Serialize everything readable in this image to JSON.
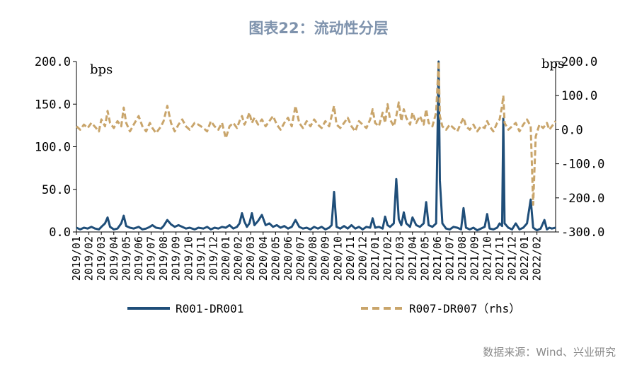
{
  "title": "图表22：流动性分层",
  "source": "数据来源：Wind、兴业研究",
  "chart_data": {
    "type": "line",
    "left_axis": {
      "unit": "bps",
      "ylim": [
        0,
        200
      ],
      "ticks": [
        "0.0",
        "50.0",
        "100.0",
        "150.0",
        "200.0"
      ]
    },
    "right_axis": {
      "unit": "bps",
      "ylim": [
        -300,
        200
      ],
      "ticks": [
        "-300.0",
        "-200.0",
        "-100.0",
        "0.0",
        "100.0",
        "200.0"
      ]
    },
    "x_tick_labels": [
      "2019/01",
      "2019/02",
      "2019/03",
      "2019/04",
      "2019/05",
      "2019/06",
      "2019/07",
      "2019/08",
      "2019/09",
      "2019/10",
      "2019/11",
      "2019/12",
      "2020/01",
      "2020/02",
      "2020/03",
      "2020/04",
      "2020/05",
      "2020/06",
      "2020/07",
      "2020/08",
      "2020/09",
      "2020/10",
      "2020/11",
      "2020/12",
      "2021/01",
      "2021/02",
      "2021/03",
      "2021/04",
      "2021/05",
      "2021/06",
      "2021/07",
      "2021/08",
      "2021/09",
      "2021/10",
      "2021/11",
      "2021/12",
      "2022/01",
      "2022/02"
    ],
    "x_range": [
      0,
      38.5
    ],
    "series": [
      {
        "name": "R001-DR001",
        "axis": "left",
        "color": "#1f4e79",
        "style": "solid",
        "points": [
          [
            0,
            5
          ],
          [
            0.3,
            3
          ],
          [
            0.6,
            5
          ],
          [
            0.9,
            4
          ],
          [
            1.2,
            6
          ],
          [
            1.5,
            4
          ],
          [
            1.8,
            3
          ],
          [
            2.0,
            6
          ],
          [
            2.3,
            10
          ],
          [
            2.5,
            17
          ],
          [
            2.7,
            6
          ],
          [
            3.0,
            3
          ],
          [
            3.3,
            4
          ],
          [
            3.6,
            10
          ],
          [
            3.8,
            19
          ],
          [
            4.0,
            7
          ],
          [
            4.3,
            5
          ],
          [
            4.6,
            4
          ],
          [
            5.0,
            6
          ],
          [
            5.3,
            3
          ],
          [
            5.6,
            4
          ],
          [
            5.9,
            6
          ],
          [
            6.1,
            8
          ],
          [
            6.4,
            5
          ],
          [
            6.8,
            4
          ],
          [
            7.0,
            7
          ],
          [
            7.3,
            14
          ],
          [
            7.6,
            9
          ],
          [
            7.9,
            6
          ],
          [
            8.2,
            8
          ],
          [
            8.5,
            6
          ],
          [
            8.8,
            4
          ],
          [
            9.1,
            5
          ],
          [
            9.5,
            3
          ],
          [
            9.8,
            5
          ],
          [
            10.2,
            4
          ],
          [
            10.5,
            6
          ],
          [
            10.8,
            3
          ],
          [
            11.1,
            5
          ],
          [
            11.4,
            4
          ],
          [
            11.7,
            6
          ],
          [
            12.0,
            5
          ],
          [
            12.3,
            8
          ],
          [
            12.6,
            4
          ],
          [
            12.9,
            6
          ],
          [
            13.1,
            10
          ],
          [
            13.3,
            22
          ],
          [
            13.5,
            12
          ],
          [
            13.7,
            6
          ],
          [
            13.9,
            10
          ],
          [
            14.1,
            22
          ],
          [
            14.3,
            8
          ],
          [
            14.6,
            13
          ],
          [
            14.9,
            20
          ],
          [
            15.2,
            8
          ],
          [
            15.5,
            10
          ],
          [
            15.8,
            6
          ],
          [
            16.1,
            8
          ],
          [
            16.4,
            5
          ],
          [
            16.7,
            7
          ],
          [
            17.0,
            4
          ],
          [
            17.3,
            6
          ],
          [
            17.6,
            14
          ],
          [
            17.9,
            6
          ],
          [
            18.2,
            4
          ],
          [
            18.5,
            5
          ],
          [
            18.8,
            3
          ],
          [
            19.1,
            6
          ],
          [
            19.4,
            4
          ],
          [
            19.7,
            6
          ],
          [
            20.0,
            3
          ],
          [
            20.3,
            5
          ],
          [
            20.5,
            8
          ],
          [
            20.7,
            47
          ],
          [
            20.9,
            6
          ],
          [
            21.2,
            4
          ],
          [
            21.5,
            7
          ],
          [
            21.8,
            4
          ],
          [
            22.1,
            8
          ],
          [
            22.4,
            4
          ],
          [
            22.7,
            6
          ],
          [
            23.0,
            3
          ],
          [
            23.3,
            6
          ],
          [
            23.6,
            5
          ],
          [
            23.8,
            16
          ],
          [
            24.0,
            5
          ],
          [
            24.3,
            6
          ],
          [
            24.6,
            4
          ],
          [
            24.8,
            18
          ],
          [
            25.0,
            8
          ],
          [
            25.2,
            6
          ],
          [
            25.5,
            10
          ],
          [
            25.7,
            62
          ],
          [
            25.9,
            15
          ],
          [
            26.1,
            8
          ],
          [
            26.3,
            23
          ],
          [
            26.5,
            10
          ],
          [
            26.8,
            6
          ],
          [
            27.0,
            17
          ],
          [
            27.3,
            8
          ],
          [
            27.6,
            6
          ],
          [
            27.9,
            10
          ],
          [
            28.1,
            35
          ],
          [
            28.3,
            8
          ],
          [
            28.6,
            6
          ],
          [
            28.9,
            10
          ],
          [
            29.0,
            100
          ],
          [
            29.1,
            200
          ],
          [
            29.2,
            60
          ],
          [
            29.4,
            10
          ],
          [
            29.7,
            4
          ],
          [
            30.0,
            3
          ],
          [
            30.3,
            6
          ],
          [
            30.6,
            5
          ],
          [
            30.9,
            3
          ],
          [
            31.1,
            28
          ],
          [
            31.3,
            5
          ],
          [
            31.6,
            3
          ],
          [
            31.9,
            5
          ],
          [
            32.2,
            2
          ],
          [
            32.5,
            4
          ],
          [
            32.8,
            6
          ],
          [
            33.0,
            21
          ],
          [
            33.2,
            4
          ],
          [
            33.5,
            3
          ],
          [
            33.8,
            5
          ],
          [
            34.0,
            10
          ],
          [
            34.2,
            7
          ],
          [
            34.3,
            133
          ],
          [
            34.4,
            10
          ],
          [
            34.7,
            5
          ],
          [
            35.0,
            3
          ],
          [
            35.3,
            10
          ],
          [
            35.6,
            3
          ],
          [
            35.9,
            5
          ],
          [
            36.2,
            10
          ],
          [
            36.5,
            38
          ],
          [
            36.7,
            5
          ],
          [
            37.0,
            2
          ],
          [
            37.3,
            4
          ],
          [
            37.6,
            14
          ],
          [
            37.8,
            3
          ],
          [
            38.0,
            5
          ],
          [
            38.2,
            4
          ],
          [
            38.5,
            5
          ]
        ]
      },
      {
        "name": "R007-DR007（rhs）",
        "axis": "right",
        "color": "#c9a56b",
        "style": "dashed",
        "points": [
          [
            0,
            10
          ],
          [
            0.3,
            0
          ],
          [
            0.6,
            15
          ],
          [
            0.9,
            5
          ],
          [
            1.2,
            20
          ],
          [
            1.5,
            8
          ],
          [
            1.8,
            -5
          ],
          [
            2.0,
            30
          ],
          [
            2.3,
            10
          ],
          [
            2.5,
            55
          ],
          [
            2.7,
            20
          ],
          [
            3.0,
            5
          ],
          [
            3.3,
            25
          ],
          [
            3.6,
            10
          ],
          [
            3.8,
            65
          ],
          [
            4.0,
            20
          ],
          [
            4.3,
            -5
          ],
          [
            4.6,
            15
          ],
          [
            5.0,
            40
          ],
          [
            5.3,
            10
          ],
          [
            5.6,
            -5
          ],
          [
            5.9,
            20
          ],
          [
            6.1,
            5
          ],
          [
            6.4,
            -10
          ],
          [
            6.8,
            10
          ],
          [
            7.0,
            25
          ],
          [
            7.3,
            70
          ],
          [
            7.6,
            20
          ],
          [
            7.9,
            -5
          ],
          [
            8.2,
            15
          ],
          [
            8.5,
            30
          ],
          [
            8.8,
            10
          ],
          [
            9.1,
            0
          ],
          [
            9.5,
            20
          ],
          [
            9.8,
            15
          ],
          [
            10.2,
            5
          ],
          [
            10.5,
            -5
          ],
          [
            10.8,
            25
          ],
          [
            11.1,
            10
          ],
          [
            11.4,
            0
          ],
          [
            11.7,
            20
          ],
          [
            12.0,
            -25
          ],
          [
            12.3,
            10
          ],
          [
            12.6,
            20
          ],
          [
            12.9,
            5
          ],
          [
            13.1,
            25
          ],
          [
            13.3,
            40
          ],
          [
            13.5,
            15
          ],
          [
            13.7,
            30
          ],
          [
            13.9,
            50
          ],
          [
            14.1,
            20
          ],
          [
            14.3,
            35
          ],
          [
            14.6,
            15
          ],
          [
            14.9,
            30
          ],
          [
            15.2,
            10
          ],
          [
            15.5,
            25
          ],
          [
            15.8,
            40
          ],
          [
            16.1,
            15
          ],
          [
            16.4,
            0
          ],
          [
            16.7,
            20
          ],
          [
            17.0,
            35
          ],
          [
            17.3,
            10
          ],
          [
            17.6,
            70
          ],
          [
            17.9,
            20
          ],
          [
            18.2,
            5
          ],
          [
            18.5,
            25
          ],
          [
            18.8,
            10
          ],
          [
            19.1,
            30
          ],
          [
            19.4,
            15
          ],
          [
            19.7,
            5
          ],
          [
            20.0,
            25
          ],
          [
            20.3,
            10
          ],
          [
            20.5,
            40
          ],
          [
            20.7,
            70
          ],
          [
            20.9,
            15
          ],
          [
            21.2,
            5
          ],
          [
            21.5,
            20
          ],
          [
            21.8,
            35
          ],
          [
            22.1,
            10
          ],
          [
            22.4,
            -5
          ],
          [
            22.7,
            25
          ],
          [
            23.0,
            15
          ],
          [
            23.3,
            5
          ],
          [
            23.6,
            30
          ],
          [
            23.8,
            60
          ],
          [
            24.0,
            20
          ],
          [
            24.3,
            10
          ],
          [
            24.6,
            50
          ],
          [
            24.8,
            20
          ],
          [
            25.0,
            75
          ],
          [
            25.2,
            30
          ],
          [
            25.5,
            10
          ],
          [
            25.7,
            40
          ],
          [
            25.9,
            80
          ],
          [
            26.1,
            25
          ],
          [
            26.3,
            60
          ],
          [
            26.5,
            35
          ],
          [
            26.8,
            15
          ],
          [
            27.0,
            50
          ],
          [
            27.3,
            20
          ],
          [
            27.6,
            40
          ],
          [
            27.9,
            15
          ],
          [
            28.1,
            60
          ],
          [
            28.3,
            20
          ],
          [
            28.6,
            10
          ],
          [
            28.9,
            50
          ],
          [
            29.0,
            120
          ],
          [
            29.1,
            200
          ],
          [
            29.2,
            40
          ],
          [
            29.4,
            10
          ],
          [
            29.7,
            0
          ],
          [
            30.0,
            15
          ],
          [
            30.3,
            5
          ],
          [
            30.6,
            -5
          ],
          [
            30.9,
            20
          ],
          [
            31.1,
            35
          ],
          [
            31.3,
            10
          ],
          [
            31.6,
            0
          ],
          [
            31.9,
            15
          ],
          [
            32.2,
            -5
          ],
          [
            32.5,
            10
          ],
          [
            32.8,
            5
          ],
          [
            33.0,
            25
          ],
          [
            33.2,
            10
          ],
          [
            33.5,
            -5
          ],
          [
            33.8,
            20
          ],
          [
            34.0,
            30
          ],
          [
            34.2,
            70
          ],
          [
            34.3,
            100
          ],
          [
            34.4,
            20
          ],
          [
            34.7,
            0
          ],
          [
            35.0,
            10
          ],
          [
            35.3,
            20
          ],
          [
            35.6,
            -5
          ],
          [
            35.9,
            15
          ],
          [
            36.2,
            30
          ],
          [
            36.5,
            10
          ],
          [
            36.7,
            -220
          ],
          [
            36.9,
            -20
          ],
          [
            37.2,
            15
          ],
          [
            37.5,
            5
          ],
          [
            37.8,
            20
          ],
          [
            38.0,
            0
          ],
          [
            38.2,
            10
          ],
          [
            38.5,
            25
          ]
        ]
      }
    ]
  },
  "legend": {
    "items": [
      {
        "label": "R001-DR001",
        "style": "solid",
        "color": "#1f4e79"
      },
      {
        "label": "R007-DR007（rhs）",
        "style": "dashed",
        "color": "#c9a56b"
      }
    ]
  }
}
